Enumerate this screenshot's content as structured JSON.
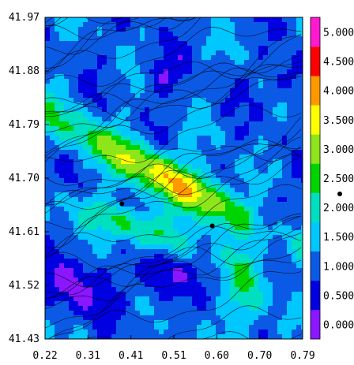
{
  "chart_data": {
    "type": "heatmap",
    "title": "",
    "xlabel": "",
    "ylabel": "",
    "xlim": [
      0.22,
      0.79
    ],
    "ylim": [
      41.43,
      41.97
    ],
    "x_ticks": [
      "0.22",
      "0.31",
      "0.41",
      "0.51",
      "0.60",
      "0.70",
      "0.79"
    ],
    "y_ticks": [
      "41.97",
      "41.88",
      "41.79",
      "41.70",
      "41.61",
      "41.52",
      "41.43"
    ],
    "colorbar": {
      "range": [
        0,
        5.5
      ],
      "labels": [
        "0.000",
        "0.500",
        "1.000",
        "1.500",
        "2.000",
        "2.500",
        "3.000",
        "3.500",
        "4.000",
        "4.500",
        "5.000"
      ],
      "colors": [
        "#8a17ff",
        "#0000e0",
        "#0a5ae6",
        "#00c8ff",
        "#00e0c0",
        "#00d400",
        "#8ee61a",
        "#ffff00",
        "#ff9900",
        "#ff0000",
        "#ff1ad2"
      ]
    },
    "overlay": "streamlines",
    "points": [
      {
        "x": 0.39,
        "y": 41.657
      },
      {
        "x": 0.59,
        "y": 41.62
      }
    ],
    "grid": false
  }
}
